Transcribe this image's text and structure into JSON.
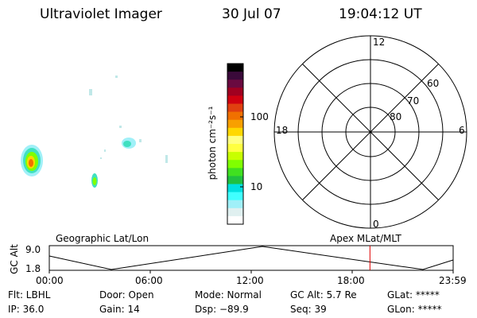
{
  "header": {
    "title": "Ultraviolet Imager",
    "date": "30 Jul 07",
    "time": "19:04:12 UT"
  },
  "colorbar": {
    "label": "photon cm⁻²s⁻¹",
    "ticks": [
      "100",
      "10"
    ],
    "colors": [
      "#000000",
      "#3a0a3a",
      "#6a0a40",
      "#a00020",
      "#d00010",
      "#e04010",
      "#f07000",
      "#f8a000",
      "#ffd800",
      "#ffff80",
      "#ffff40",
      "#c8ff00",
      "#80ff00",
      "#40e020",
      "#20c040",
      "#00e0e0",
      "#40ffff",
      "#a0f0f8",
      "#e0f0f0",
      "#ffffff"
    ]
  },
  "polar": {
    "mlt_labels": {
      "top": "12",
      "left": "18",
      "right": "6",
      "bottom": "0"
    },
    "lat_labels": [
      "60",
      "70",
      "80"
    ]
  },
  "timeline": {
    "left_title": "Geographic Lat/Lon",
    "right_title": "Apex MLat/MLT",
    "axis_label": "GC Alt",
    "y_ticks": [
      "9.0",
      "1.8"
    ],
    "x_ticks": [
      "00:00",
      "06:00",
      "12:00",
      "18:00",
      "23:59"
    ],
    "current_time_fraction": 0.794
  },
  "footer": {
    "flt": "Flt: LBHL",
    "ip": "IP: 36.0",
    "door": "Door: Open",
    "gain": "Gain: 14",
    "mode": "Mode: Normal",
    "dsp": "Dsp:  −89.9",
    "gcalt": "GC Alt: 5.7 Re",
    "seq": "Seq: 39",
    "glat": "GLat: *****",
    "glon": "GLon: *****"
  }
}
